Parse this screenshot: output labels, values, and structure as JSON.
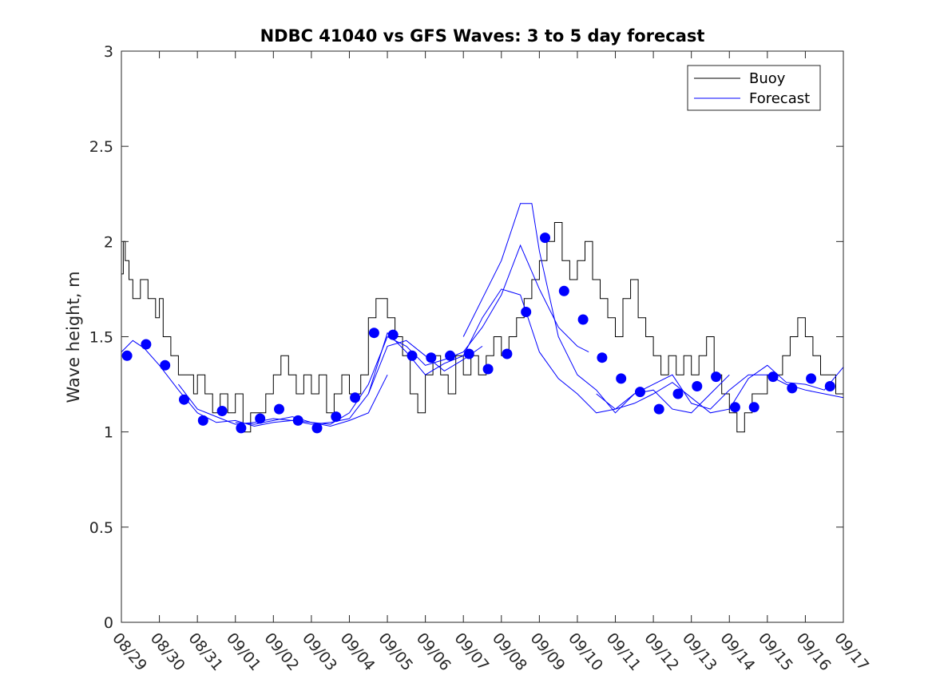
{
  "chart_data": {
    "type": "line",
    "title": "NDBC 41040 vs GFS Waves: 3 to 5 day forecast",
    "xlabel": "",
    "ylabel": "Wave height, m",
    "ylim": [
      0,
      3
    ],
    "yticks": [
      "0",
      "0.5",
      "1",
      "1.5",
      "2",
      "2.5",
      "3"
    ],
    "xlim": [
      0,
      19
    ],
    "xticks": [
      "08/29",
      "08/30",
      "08/31",
      "09/01",
      "09/02",
      "09/03",
      "09/04",
      "09/05",
      "09/06",
      "09/07",
      "09/08",
      "09/09",
      "09/10",
      "09/11",
      "09/12",
      "09/13",
      "09/14",
      "09/15",
      "09/16",
      "09/17"
    ],
    "legend": {
      "position": "top-right",
      "entries": [
        "Buoy",
        "Forecast"
      ]
    },
    "colors": {
      "buoy": "#000000",
      "forecast": "#0000ff",
      "axis": "#262626"
    },
    "buoy": {
      "name": "Buoy",
      "x": [
        0.0,
        0.05,
        0.1,
        0.2,
        0.3,
        0.5,
        0.7,
        0.9,
        1.0,
        1.1,
        1.3,
        1.5,
        1.7,
        1.9,
        2.0,
        2.2,
        2.4,
        2.6,
        2.8,
        3.0,
        3.2,
        3.4,
        3.6,
        3.8,
        4.0,
        4.2,
        4.4,
        4.6,
        4.8,
        5.0,
        5.2,
        5.4,
        5.6,
        5.8,
        6.0,
        6.2,
        6.3,
        6.5,
        6.7,
        6.9,
        7.0,
        7.2,
        7.4,
        7.6,
        7.8,
        8.0,
        8.2,
        8.4,
        8.6,
        8.8,
        9.0,
        9.2,
        9.4,
        9.6,
        9.8,
        10.0,
        10.2,
        10.4,
        10.6,
        10.8,
        11.0,
        11.2,
        11.4,
        11.6,
        11.8,
        12.0,
        12.2,
        12.4,
        12.6,
        12.8,
        13.0,
        13.2,
        13.4,
        13.6,
        13.8,
        14.0,
        14.2,
        14.4,
        14.6,
        14.8,
        15.0,
        15.2,
        15.4,
        15.6,
        15.8,
        16.0,
        16.2,
        16.4,
        16.6,
        16.8,
        17.0,
        17.2,
        17.4,
        17.6,
        17.8,
        18.0,
        18.2,
        18.4,
        18.6,
        18.8,
        19.0
      ],
      "values": [
        1.83,
        2.0,
        1.9,
        1.8,
        1.7,
        1.8,
        1.7,
        1.6,
        1.7,
        1.5,
        1.4,
        1.3,
        1.3,
        1.2,
        1.3,
        1.2,
        1.1,
        1.2,
        1.1,
        1.2,
        1.0,
        1.1,
        1.1,
        1.2,
        1.3,
        1.4,
        1.3,
        1.2,
        1.3,
        1.2,
        1.3,
        1.1,
        1.2,
        1.3,
        1.2,
        1.2,
        1.3,
        1.6,
        1.7,
        1.7,
        1.6,
        1.5,
        1.4,
        1.2,
        1.1,
        1.3,
        1.4,
        1.3,
        1.2,
        1.4,
        1.3,
        1.4,
        1.3,
        1.4,
        1.5,
        1.4,
        1.5,
        1.6,
        1.7,
        1.8,
        1.9,
        2.0,
        2.1,
        1.9,
        1.8,
        1.9,
        2.0,
        1.8,
        1.7,
        1.6,
        1.5,
        1.7,
        1.8,
        1.6,
        1.5,
        1.4,
        1.3,
        1.4,
        1.3,
        1.4,
        1.3,
        1.4,
        1.5,
        1.3,
        1.2,
        1.1,
        1.0,
        1.1,
        1.2,
        1.2,
        1.3,
        1.3,
        1.4,
        1.5,
        1.6,
        1.5,
        1.4,
        1.3,
        1.3,
        1.2,
        1.2
      ]
    },
    "forecast_lines": [
      {
        "name": "Forecast",
        "x": [
          0.0,
          0.3,
          0.6,
          1.0,
          1.5,
          2.0,
          2.5,
          3.0,
          3.5,
          4.0,
          4.5,
          5.0,
          5.5,
          6.0,
          6.5,
          7.0
        ],
        "values": [
          1.42,
          1.48,
          1.44,
          1.35,
          1.22,
          1.1,
          1.05,
          1.06,
          1.03,
          1.05,
          1.06,
          1.05,
          1.03,
          1.06,
          1.1,
          1.3
        ]
      },
      {
        "name": "Forecast",
        "x": [
          1.5,
          2.0,
          2.5,
          3.0,
          3.5,
          4.0,
          4.5,
          5.0,
          5.5,
          6.0,
          6.5,
          7.0,
          7.5,
          8.0,
          8.5,
          9.0,
          9.5
        ],
        "values": [
          1.25,
          1.12,
          1.08,
          1.04,
          1.05,
          1.07,
          1.06,
          1.04,
          1.05,
          1.07,
          1.2,
          1.45,
          1.48,
          1.4,
          1.32,
          1.38,
          1.45
        ]
      },
      {
        "name": "Forecast",
        "x": [
          3.0,
          3.5,
          4.0,
          4.5,
          5.0,
          5.5,
          6.0,
          6.5,
          7.0,
          7.5,
          8.0,
          8.5,
          9.0,
          9.5,
          10.0,
          10.5,
          11.0,
          11.5,
          12.0,
          12.3
        ],
        "values": [
          1.05,
          1.04,
          1.06,
          1.08,
          1.05,
          1.04,
          1.1,
          1.25,
          1.5,
          1.45,
          1.35,
          1.38,
          1.42,
          1.55,
          1.72,
          1.98,
          1.75,
          1.55,
          1.45,
          1.42
        ]
      },
      {
        "name": "Forecast",
        "x": [
          6.5,
          7.0,
          7.5,
          8.0,
          8.5,
          9.0,
          9.5,
          10.0,
          10.5,
          11.0,
          11.5,
          12.0,
          12.5,
          13.0,
          13.5,
          14.0,
          14.5,
          15.0,
          15.5,
          16.0
        ],
        "values": [
          1.2,
          1.52,
          1.42,
          1.3,
          1.36,
          1.4,
          1.6,
          1.75,
          1.72,
          1.42,
          1.28,
          1.2,
          1.1,
          1.12,
          1.2,
          1.22,
          1.12,
          1.1,
          1.2,
          1.3
        ]
      },
      {
        "name": "Forecast",
        "x": [
          9.0,
          9.5,
          10.0,
          10.5,
          10.8,
          11.0,
          11.5,
          12.0,
          12.5,
          13.0,
          13.5,
          14.0,
          14.5,
          15.0,
          15.5,
          16.0,
          16.5,
          17.0,
          17.5,
          18.0,
          18.5,
          19.0
        ],
        "values": [
          1.5,
          1.7,
          1.9,
          2.2,
          2.2,
          1.95,
          1.5,
          1.3,
          1.22,
          1.1,
          1.2,
          1.25,
          1.3,
          1.15,
          1.12,
          1.22,
          1.3,
          1.3,
          1.25,
          1.22,
          1.2,
          1.18
        ]
      },
      {
        "name": "Forecast",
        "x": [
          12.5,
          13.0,
          13.5,
          14.0,
          14.5,
          15.0,
          15.5,
          16.0,
          16.5,
          17.0,
          17.5,
          18.0,
          18.5,
          19.0
        ],
        "values": [
          1.2,
          1.12,
          1.15,
          1.2,
          1.26,
          1.18,
          1.1,
          1.12,
          1.28,
          1.35,
          1.26,
          1.25,
          1.22,
          1.34
        ]
      }
    ],
    "forecast_points": {
      "name": "Forecast points",
      "x": [
        0.15,
        0.65,
        1.15,
        1.65,
        2.15,
        2.65,
        3.15,
        3.65,
        4.15,
        4.65,
        5.15,
        5.65,
        6.15,
        6.65,
        7.15,
        7.65,
        8.15,
        8.65,
        9.15,
        9.65,
        10.15,
        10.65,
        11.15,
        11.65,
        12.15,
        12.65,
        13.15,
        13.65,
        14.15,
        14.65,
        15.15,
        15.65,
        16.15,
        16.65,
        17.15,
        17.65,
        18.15,
        18.65
      ],
      "values": [
        1.4,
        1.46,
        1.35,
        1.17,
        1.06,
        1.11,
        1.02,
        1.07,
        1.12,
        1.06,
        1.02,
        1.08,
        1.18,
        1.52,
        1.51,
        1.4,
        1.39,
        1.4,
        1.41,
        1.33,
        1.41,
        1.63,
        2.02,
        1.74,
        1.59,
        1.39,
        1.28,
        1.21,
        1.12,
        1.2,
        1.24,
        1.29,
        1.13,
        1.13,
        1.29,
        1.23,
        1.28,
        1.24
      ]
    }
  }
}
